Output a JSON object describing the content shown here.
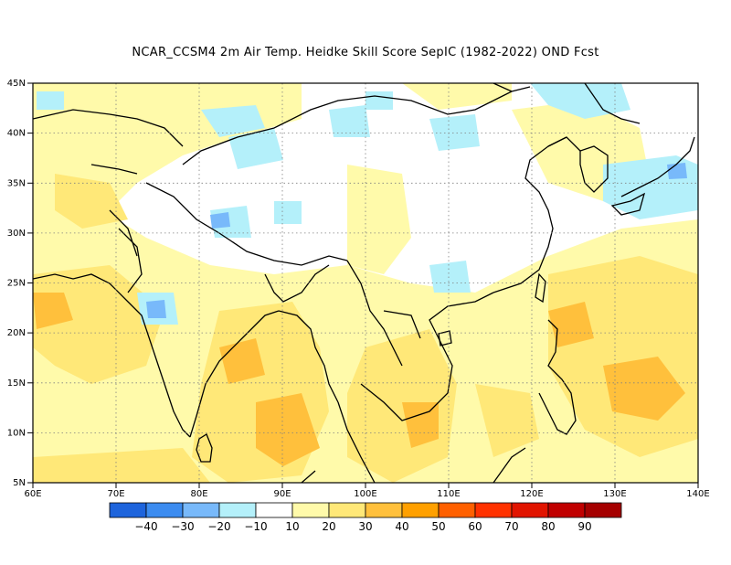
{
  "title": "NCAR_CCSM4  2m Air Temp. Heidke Skill Score SepIC (1982-2022) OND Fcst",
  "map": {
    "lon_range": [
      60,
      140
    ],
    "lat_range": [
      5,
      45
    ],
    "lon_ticks": [
      "60E",
      "70E",
      "80E",
      "90E",
      "100E",
      "110E",
      "120E",
      "130E",
      "140E"
    ],
    "lat_ticks": [
      "5N",
      "10N",
      "15N",
      "20N",
      "25N",
      "30N",
      "35N",
      "40N",
      "45N"
    ],
    "grid": "dotted"
  },
  "colorbar": {
    "colors": [
      "#1e64dc",
      "#3c8cf0",
      "#78b9fa",
      "#b4f0fa",
      "#ffffff",
      "#fffaaa",
      "#ffe878",
      "#ffc03c",
      "#ffa000",
      "#ff6000",
      "#ff3200",
      "#e11400",
      "#c00000",
      "#a50000"
    ],
    "labels": [
      "-40",
      "-30",
      "-20",
      "-10",
      "10",
      "20",
      "30",
      "40",
      "50",
      "60",
      "70",
      "80",
      "90"
    ]
  }
}
